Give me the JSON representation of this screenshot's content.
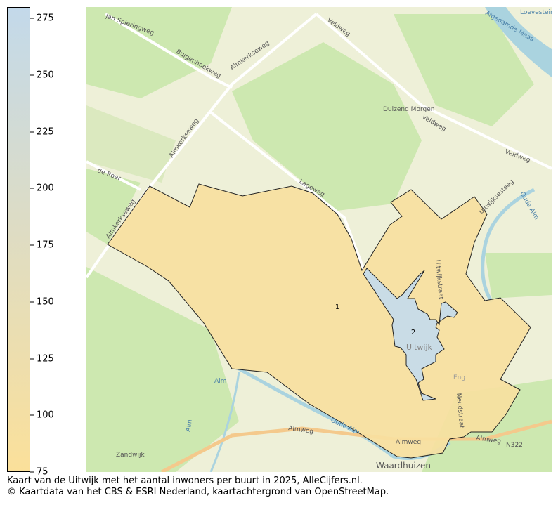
{
  "legend": {
    "min": 75,
    "max": 280,
    "color_low": "#fbe09a",
    "color_high": "#c3d9ea",
    "ticks": [
      "275",
      "250",
      "225",
      "200",
      "175",
      "150",
      "125",
      "100",
      "75"
    ]
  },
  "map": {
    "regions": [
      {
        "label": "1",
        "value": 75,
        "color": "#f7dfa0"
      },
      {
        "label": "2",
        "value": 280,
        "color": "#c6dbea"
      }
    ],
    "place_labels": [
      "Duizend Morgen",
      "Waardhuizen",
      "Zandwijk",
      "Uitwijk",
      "Eng"
    ],
    "road_labels": [
      "Jan Spieringweg",
      "Buigenhoekweg",
      "Almkerkseweg",
      "Almkerkseweg",
      "Almkerkseweg",
      "de Roer",
      "Veldweg",
      "Veldweg",
      "Veldweg",
      "Lageweg",
      "Almweg",
      "Almweg",
      "Almweg",
      "N322",
      "Uitwijksesteeg",
      "Neudstraat",
      "Uitwijkstraat"
    ],
    "water_labels": [
      "Afgedamde Maas",
      "Oude Alm",
      "Oude Alm",
      "Alm",
      "Alm",
      "Loevestein"
    ]
  },
  "caption": {
    "line1": "Kaart van de Uitwijk met het aantal inwoners per buurt in 2025, AlleCijfers.nl.",
    "line2": "© Kaartdata van het CBS & ESRI Nederland, kaartachtergrond van OpenStreetMap."
  }
}
